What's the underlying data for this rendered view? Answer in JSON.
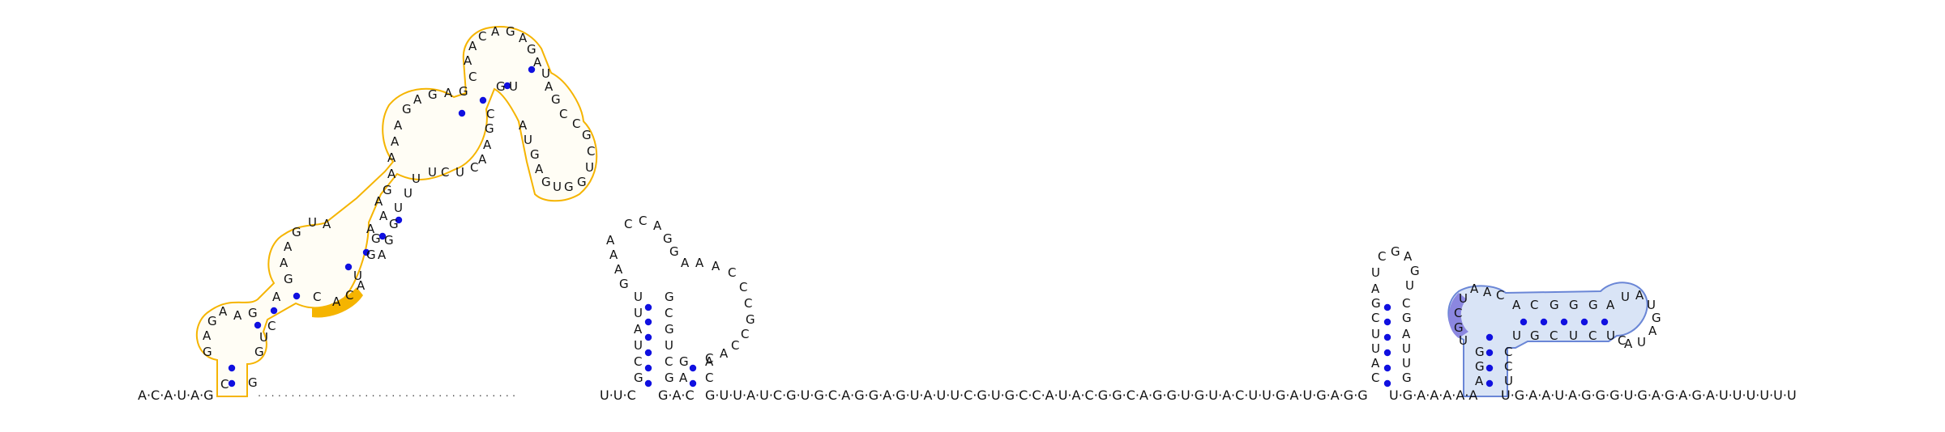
{
  "diagram": {
    "colors": {
      "background": "#ffffff",
      "highlight_orange": "#f5b400",
      "highlight_orange_fill": "#ffffff",
      "highlight_blue_stroke": "#6a86d6",
      "highlight_blue_fill": "#d9e4f6",
      "highlight_purple": "#8b87e0",
      "base_pair_dot": "#1010e0",
      "text": "#111111"
    },
    "backbone": {
      "left_end": "A·C·A·U·A·G",
      "dotted_linker": "· · · · · · · · · · · · · · · · · · · · · · · · · · · · · · · · · · · · · · ·",
      "mid_1": "U·U·C",
      "mid_2": "G·A·C",
      "mid_3": "G·U·U·A·U·C·G·U·G·C·A·G·G·A·G·U·A·U·U·C·G·U·G·C·C·A·U·A·C·G·G·C·A·G·G·U·G·U·A·C·U·U·G·A·U·G·A·G·G",
      "mid_4": "U·G·A·A·A·A·A",
      "right_end": "U·G·A·A·U·A·G·G·G·U·G·A·G·A·G·A·U·U·U·U·U·U"
    }
  }
}
